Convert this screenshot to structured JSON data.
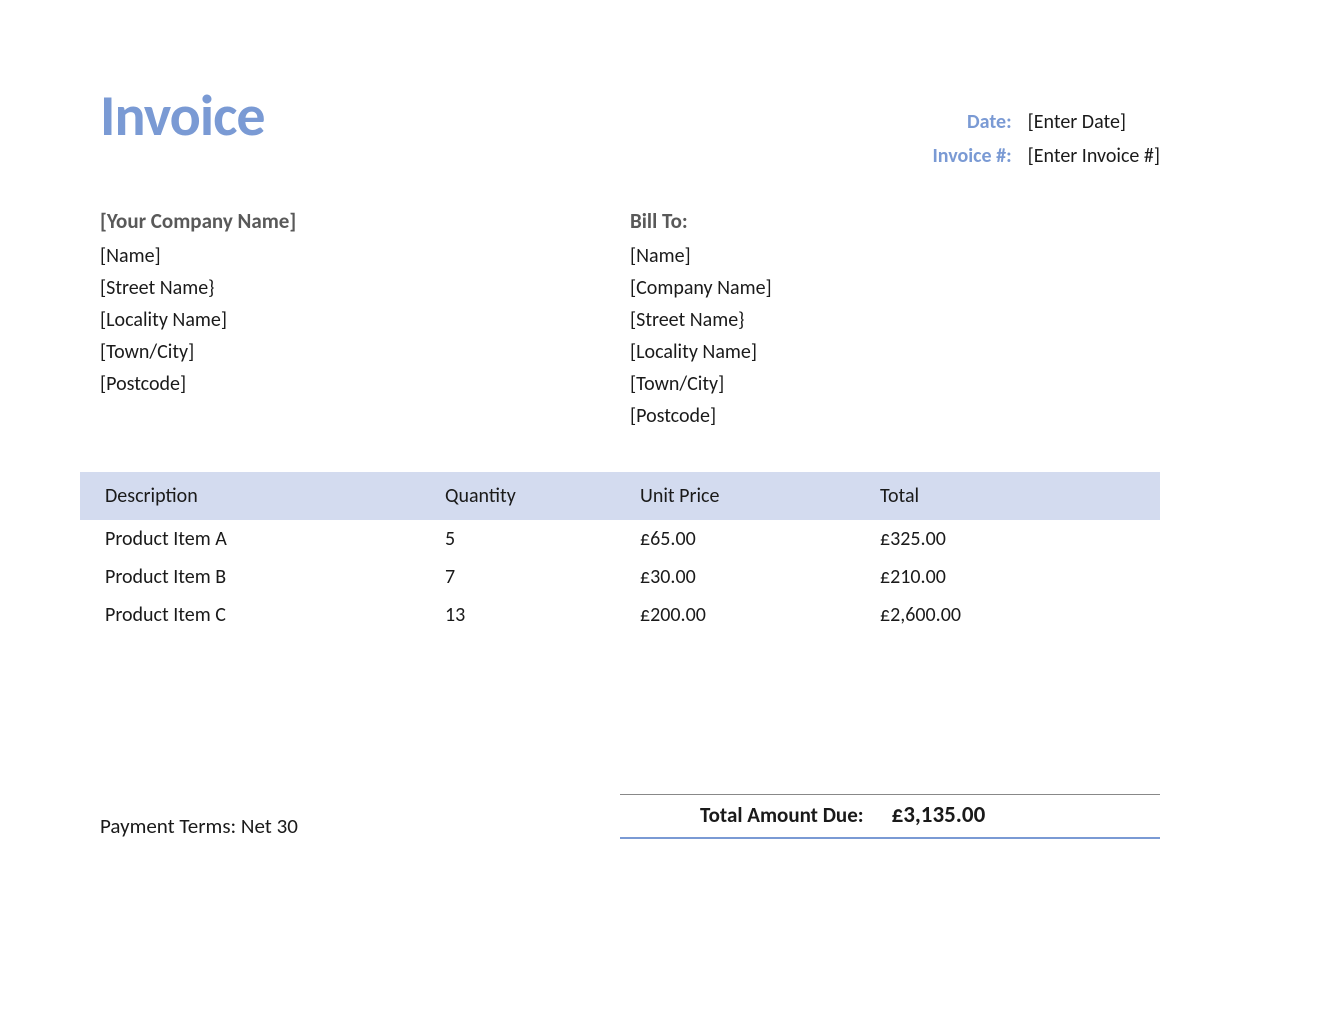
{
  "title": "Invoice",
  "colors": {
    "accent": "#7a9ad4",
    "header_band": "#d3dbef",
    "text": "#1a1a1a",
    "muted": "#595959",
    "rule_top": "#888888",
    "background": "#ffffff"
  },
  "typography": {
    "family": "Calibri",
    "title_size_pt": 44,
    "body_size_pt": 15,
    "title_weight": 700
  },
  "meta": {
    "date_label": "Date:",
    "date_value": "[Enter Date]",
    "invoice_num_label": "Invoice #:",
    "invoice_num_value": "[Enter Invoice #]"
  },
  "from": {
    "heading": "[Your Company Name]",
    "lines": [
      "[Name]",
      "[Street Name}",
      "[Locality Name]",
      "[Town/City]",
      "[Postcode]"
    ]
  },
  "bill_to": {
    "heading": "Bill To:",
    "lines": [
      "[Name]",
      "[Company Name]",
      "[Street Name}",
      "[Locality Name]",
      "[Town/City]",
      "[Postcode]"
    ]
  },
  "table": {
    "columns": [
      "Description",
      "Quantity",
      "Unit Price",
      "Total"
    ],
    "rows": [
      {
        "description": "Product Item A",
        "quantity": "5",
        "unit_price": "£65.00",
        "total": "£325.00"
      },
      {
        "description": "Product Item B",
        "quantity": "7",
        "unit_price": "£30.00",
        "total": "£210.00"
      },
      {
        "description": "Product Item C",
        "quantity": "13",
        "unit_price": "£200.00",
        "total": "£2,600.00"
      }
    ]
  },
  "footer": {
    "payment_terms": "Payment Terms: Net 30",
    "total_label": "Total Amount Due:",
    "total_value": "£3,135.00"
  }
}
